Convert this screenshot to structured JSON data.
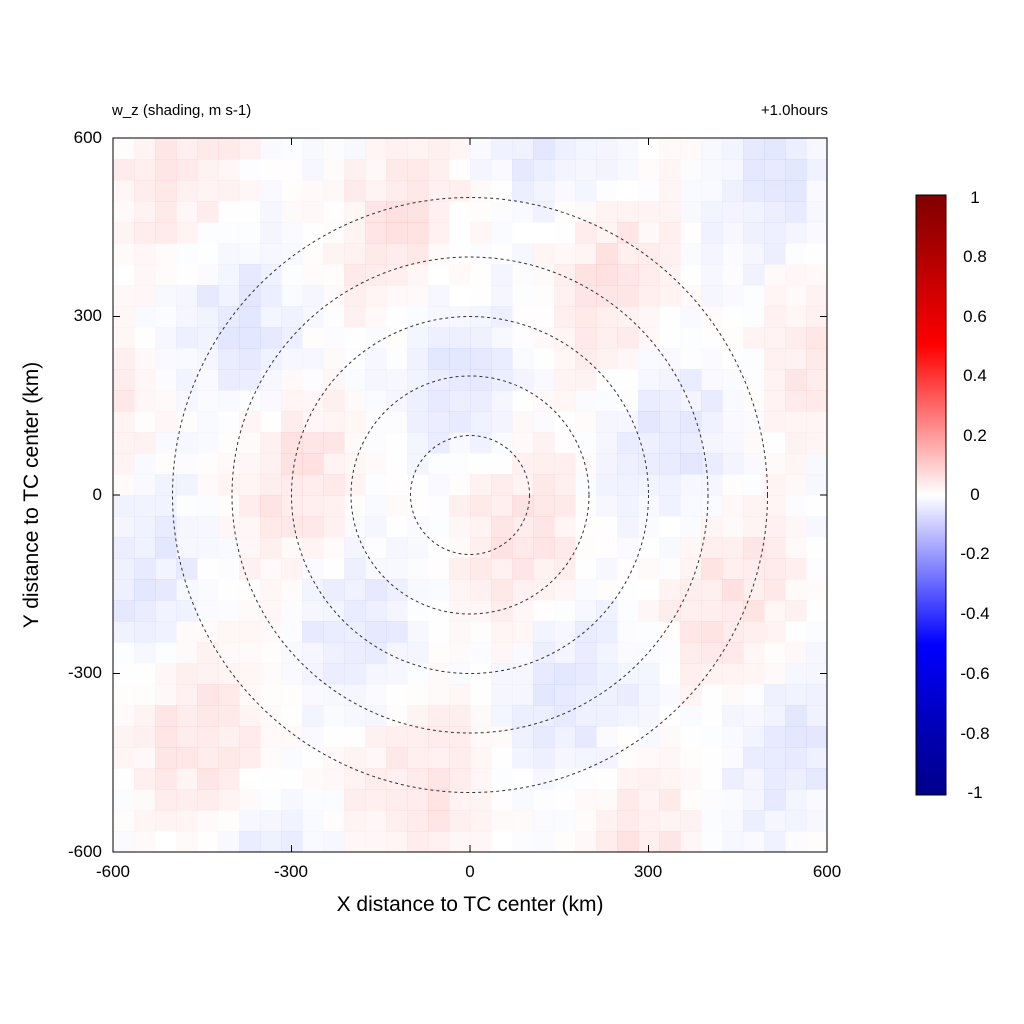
{
  "titles": {
    "left": "w_z (shading, m s-1)",
    "right": "+1.0hours"
  },
  "axes": {
    "xlabel": "X distance to TC center (km)",
    "ylabel": "Y distance to TC center (km)",
    "xticks": [
      "-600",
      "-300",
      "0",
      "300",
      "600"
    ],
    "yticks": [
      "600",
      "300",
      "0",
      "-300",
      "-600"
    ]
  },
  "colorbar": {
    "ticks": [
      "1",
      "0.8",
      "0.6",
      "0.4",
      "0.2",
      "0",
      "-0.2",
      "-0.4",
      "-0.6",
      "-0.8",
      "-1"
    ],
    "colors": {
      "max": "#800000",
      "high": "#ff0000",
      "zero": "#ffffff",
      "low": "#0000ff",
      "min": "#00008b"
    }
  },
  "chart_data": {
    "type": "heatmap",
    "field": "w_z",
    "units": "m s-1",
    "xlim": [
      -600,
      600
    ],
    "ylim": [
      -600,
      600
    ],
    "color_range": [
      -1,
      1
    ],
    "colormap": "blue-white-red",
    "overlay_circles_radii_km": [
      100,
      200,
      300,
      400,
      500
    ],
    "overlay_style": "dashed",
    "shading_magnitude": "weak, mostly within ±0.1"
  }
}
